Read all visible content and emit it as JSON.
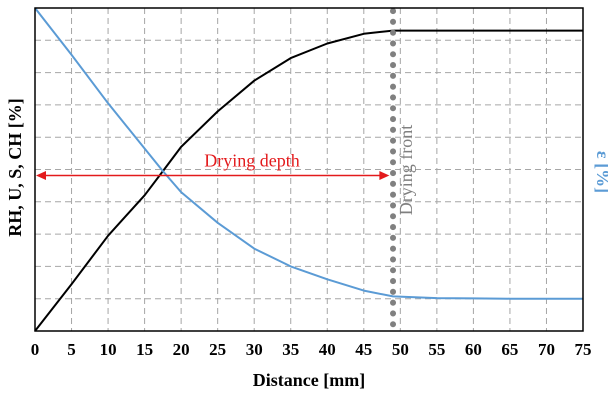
{
  "chart_data": {
    "type": "line",
    "title": "",
    "xlabel": "Distance [mm]",
    "ylabel_left": "RH, U, S, CH [%]",
    "ylabel_right": "ε [%]",
    "xlim": [
      0,
      75
    ],
    "xticks": [
      "0",
      "5",
      "10",
      "15",
      "20",
      "25",
      "30",
      "35",
      "40",
      "45",
      "50",
      "55",
      "60",
      "65",
      "70",
      "75"
    ],
    "ylim": [
      0,
      10
    ],
    "grid": true,
    "legend": "none",
    "series": [
      {
        "color": "#000000",
        "axis": "left",
        "x": [
          0,
          5,
          10,
          15,
          17.5,
          20,
          25,
          30,
          35,
          40,
          45,
          49,
          55,
          60,
          65,
          70,
          75
        ],
        "y": [
          0,
          1.45,
          2.95,
          4.2,
          4.95,
          5.7,
          6.8,
          7.75,
          8.45,
          8.9,
          9.2,
          9.3,
          9.3,
          9.3,
          9.3,
          9.3,
          9.3
        ]
      },
      {
        "color": "#5b9bd5",
        "axis": "right",
        "x": [
          0,
          5,
          10,
          15,
          17.5,
          20,
          25,
          30,
          35,
          40,
          45,
          49,
          55,
          60,
          65,
          70,
          75
        ],
        "y": [
          10,
          8.55,
          7.05,
          5.65,
          4.95,
          4.3,
          3.35,
          2.55,
          2.0,
          1.6,
          1.25,
          1.07,
          1.02,
          1.01,
          1.0,
          1.0,
          1.0
        ]
      }
    ],
    "annotations": {
      "drying_depth": {
        "label": "Drying depth",
        "color": "#e31a1c",
        "x_start": 0,
        "x_end": 48.5,
        "y": 5
      },
      "drying_front": {
        "label": "Drying front",
        "color": "#808080",
        "x": 49
      }
    },
    "colors": {
      "left_axis_title": "#000000",
      "right_axis_title": "#5b9bd5",
      "grid": "#a6a6a6"
    }
  }
}
